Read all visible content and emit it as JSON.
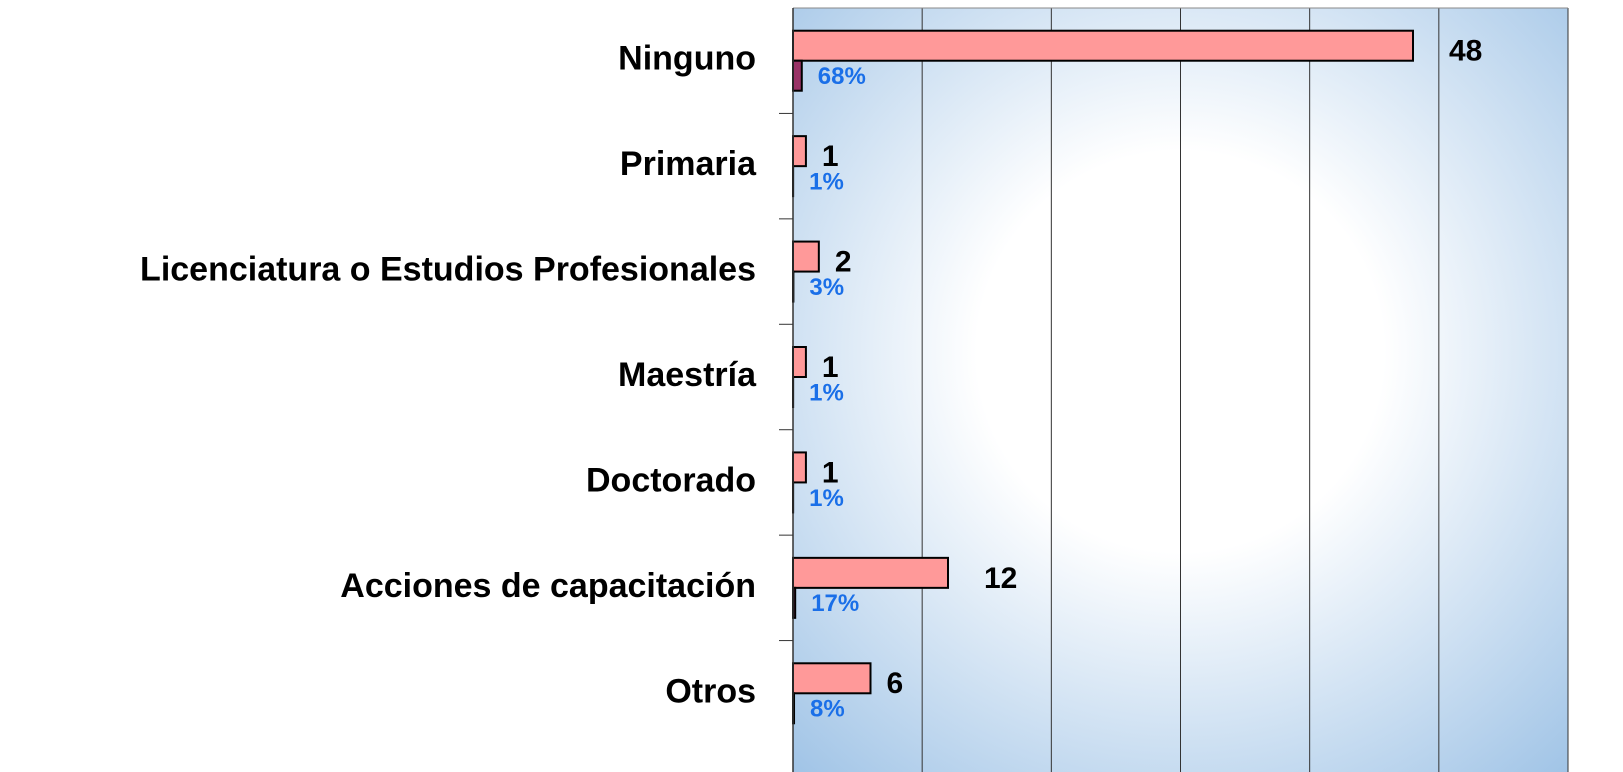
{
  "chart_data": {
    "type": "hbar",
    "categories": [
      "Ninguno",
      "Primaria",
      "Licenciatura o Estudios Profesionales",
      "Maestría",
      "Doctorado",
      "Acciones de capacitación",
      "Otros"
    ],
    "series": [
      {
        "color": "#ff9999",
        "values": [
          48,
          1,
          2,
          1,
          1,
          12,
          6
        ]
      },
      {
        "color": "#993366",
        "values": [
          0.68,
          0.01,
          0.03,
          0.01,
          0.01,
          0.17,
          0.08
        ],
        "value_labels": [
          "68%",
          "1%",
          "3%",
          "1%",
          "1%",
          "17%",
          "8%"
        ]
      }
    ],
    "xlim": [
      0,
      60
    ],
    "xticks": [
      0,
      10,
      20,
      30,
      40,
      50,
      60
    ],
    "grid": true
  }
}
